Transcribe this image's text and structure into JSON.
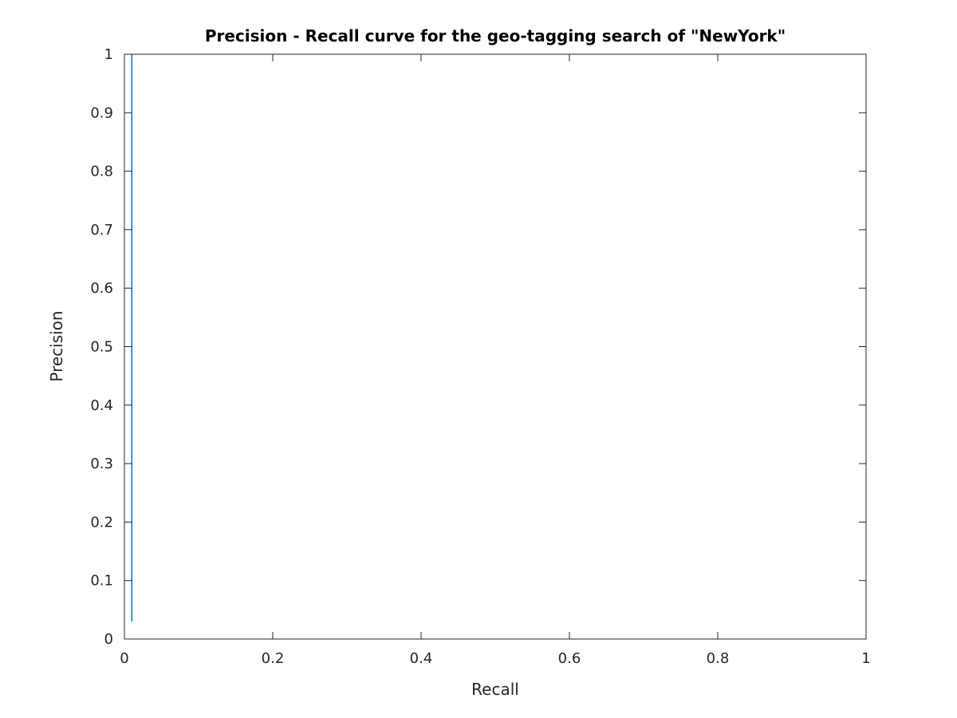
{
  "chart_data": {
    "type": "line",
    "title": "Precision - Recall curve for the geo-tagging search of \"NewYork\"",
    "xlabel": "Recall",
    "ylabel": "Precision",
    "xlim": [
      0,
      1
    ],
    "ylim": [
      0,
      1
    ],
    "x_ticks": [
      "0",
      "0.2",
      "0.4",
      "0.6",
      "0.8",
      "1"
    ],
    "y_ticks": [
      "0",
      "0.1",
      "0.2",
      "0.3",
      "0.4",
      "0.5",
      "0.6",
      "0.7",
      "0.8",
      "0.9",
      "1"
    ],
    "grid": false,
    "legend": "none",
    "series": [
      {
        "color": "#0072bd",
        "x": [
          0.01,
          0.01
        ],
        "y": [
          1.0,
          0.03
        ]
      }
    ]
  }
}
